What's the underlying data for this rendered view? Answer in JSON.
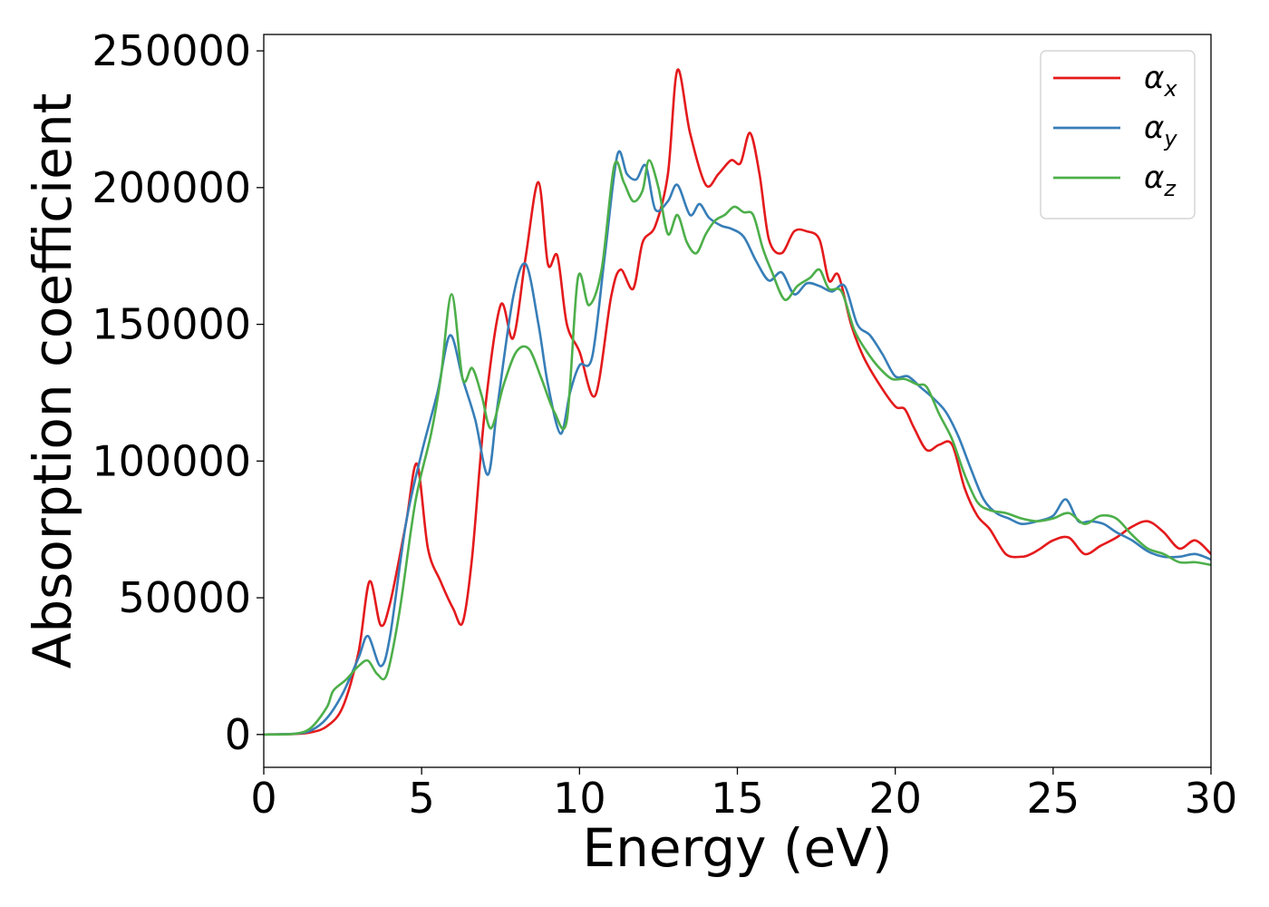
{
  "chart_data": {
    "type": "line",
    "xlabel": "Energy (eV)",
    "ylabel": "Absorption coefficient",
    "xlim": [
      0,
      30
    ],
    "ylim": [
      -12000,
      256000
    ],
    "xticks": [
      0,
      5,
      10,
      15,
      20,
      25,
      30
    ],
    "xtick_labels": [
      "0",
      "5",
      "10",
      "15",
      "20",
      "25",
      "30"
    ],
    "yticks": [
      0,
      50000,
      100000,
      150000,
      200000,
      250000
    ],
    "ytick_labels": [
      "0",
      "50000",
      "100000",
      "150000",
      "200000",
      "250000"
    ],
    "grid": false,
    "legend": "top-right",
    "series": [
      {
        "name": "α",
        "subscript": "x",
        "color": "#e41a1c",
        "x": [
          0,
          1.0,
          1.5,
          2.0,
          2.5,
          3.0,
          3.35,
          3.7,
          4.0,
          4.5,
          4.85,
          5.2,
          5.6,
          6.0,
          6.3,
          6.6,
          7.0,
          7.5,
          7.9,
          8.3,
          8.7,
          9.0,
          9.3,
          9.6,
          10.0,
          10.5,
          11.0,
          11.3,
          11.7,
          12.0,
          12.4,
          12.8,
          13.1,
          13.5,
          14.0,
          14.4,
          14.8,
          15.1,
          15.4,
          15.7,
          16.0,
          16.4,
          16.8,
          17.2,
          17.6,
          17.9,
          18.2,
          18.6,
          19.0,
          19.5,
          20.0,
          20.3,
          20.6,
          21.0,
          21.4,
          21.8,
          22.2,
          22.6,
          23.0,
          23.5,
          24.0,
          24.3,
          24.6,
          25.0,
          25.5,
          26.0,
          26.5,
          27.0,
          27.5,
          28.0,
          28.5,
          29.0,
          29.5,
          30.0
        ],
        "y": [
          0,
          200,
          800,
          3000,
          10000,
          30000,
          56000,
          40000,
          48000,
          77000,
          99000,
          68000,
          56000,
          46000,
          41000,
          65000,
          118000,
          157000,
          145000,
          175000,
          202000,
          172000,
          175000,
          150000,
          140000,
          124000,
          160000,
          170000,
          163000,
          180000,
          186000,
          205000,
          243000,
          220000,
          201000,
          205000,
          210000,
          209000,
          220000,
          205000,
          181000,
          176000,
          184000,
          184000,
          181000,
          166000,
          168000,
          150000,
          138000,
          128000,
          120000,
          119000,
          112000,
          104000,
          106000,
          106000,
          90000,
          80000,
          75000,
          66000,
          65000,
          66000,
          68000,
          71000,
          72000,
          66000,
          69000,
          72000,
          76000,
          78000,
          74000,
          68000,
          71000,
          66000
        ]
      },
      {
        "name": "α",
        "subscript": "y",
        "color": "#377eb8",
        "x": [
          0,
          1.0,
          1.5,
          2.0,
          2.5,
          3.0,
          3.3,
          3.7,
          4.0,
          4.5,
          5.0,
          5.5,
          5.9,
          6.3,
          6.7,
          7.1,
          7.4,
          7.9,
          8.3,
          8.7,
          9.0,
          9.4,
          9.7,
          10.0,
          10.4,
          10.8,
          11.2,
          11.5,
          11.8,
          12.1,
          12.4,
          12.8,
          13.1,
          13.5,
          13.8,
          14.1,
          14.5,
          14.8,
          15.2,
          15.6,
          16.0,
          16.4,
          16.8,
          17.2,
          17.6,
          18.0,
          18.4,
          18.8,
          19.2,
          19.6,
          20.0,
          20.4,
          20.8,
          21.2,
          21.6,
          22.0,
          22.4,
          22.8,
          23.2,
          23.6,
          24.0,
          24.5,
          25.0,
          25.4,
          25.8,
          26.2,
          26.6,
          27.0,
          27.5,
          28.0,
          28.5,
          29.0,
          29.5,
          30.0
        ],
        "y": [
          0,
          300,
          1500,
          6000,
          15000,
          28000,
          36000,
          25000,
          36000,
          77000,
          103000,
          125000,
          146000,
          130000,
          115000,
          95000,
          120000,
          160000,
          172000,
          150000,
          128000,
          110000,
          125000,
          135000,
          138000,
          175000,
          212000,
          205000,
          203000,
          208000,
          192000,
          195000,
          201000,
          190000,
          194000,
          189000,
          186000,
          185000,
          182000,
          173000,
          166000,
          169000,
          161000,
          165000,
          164000,
          162000,
          164000,
          150000,
          146000,
          139000,
          131000,
          131000,
          127000,
          123000,
          118000,
          109000,
          97000,
          86000,
          81000,
          79000,
          77000,
          78000,
          80000,
          86000,
          78000,
          78000,
          77000,
          74000,
          71000,
          67000,
          65000,
          65000,
          66000,
          64000
        ]
      },
      {
        "name": "α",
        "subscript": "z",
        "color": "#4daf4a",
        "x": [
          0,
          1.0,
          1.5,
          2.0,
          2.2,
          2.6,
          3.0,
          3.3,
          3.6,
          3.9,
          4.3,
          4.8,
          5.3,
          5.6,
          5.95,
          6.3,
          6.6,
          6.9,
          7.2,
          7.6,
          8.0,
          8.4,
          8.8,
          9.2,
          9.6,
          9.95,
          10.3,
          10.7,
          11.1,
          11.4,
          11.7,
          12.0,
          12.2,
          12.5,
          12.8,
          13.1,
          13.4,
          13.7,
          14.0,
          14.3,
          14.6,
          14.9,
          15.2,
          15.5,
          15.8,
          16.1,
          16.5,
          16.9,
          17.3,
          17.6,
          17.9,
          18.3,
          18.7,
          19.1,
          19.5,
          19.9,
          20.3,
          20.7,
          21.0,
          21.4,
          21.8,
          22.2,
          22.6,
          23.0,
          23.5,
          24.0,
          24.5,
          25.0,
          25.5,
          26.0,
          26.5,
          27.0,
          27.5,
          28.0,
          28.5,
          29.0,
          29.5,
          30.0
        ],
        "y": [
          0,
          300,
          2500,
          10000,
          16000,
          20000,
          25000,
          27000,
          22000,
          22000,
          45000,
          85000,
          110000,
          130000,
          161000,
          130000,
          134000,
          124000,
          112000,
          128000,
          140000,
          141000,
          130000,
          118000,
          115000,
          167000,
          157000,
          170000,
          208000,
          202000,
          195000,
          199000,
          210000,
          200000,
          183000,
          190000,
          180000,
          176000,
          183000,
          188000,
          190000,
          193000,
          191000,
          190000,
          178000,
          169000,
          159000,
          164000,
          167000,
          170000,
          163000,
          162000,
          148000,
          140000,
          134000,
          130000,
          130000,
          128000,
          127000,
          117000,
          108000,
          95000,
          85000,
          82000,
          81000,
          79000,
          78000,
          79000,
          81000,
          77000,
          80000,
          79000,
          73000,
          68000,
          66000,
          63000,
          63000,
          62000
        ]
      }
    ]
  }
}
